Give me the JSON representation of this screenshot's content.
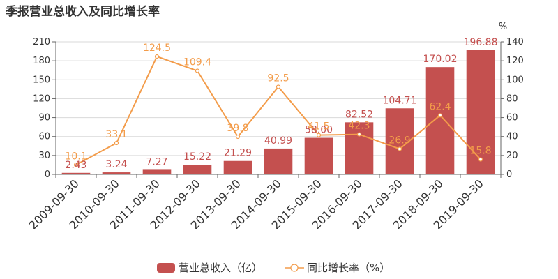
{
  "title": "季报营业总收入及同比增长率",
  "colors": {
    "bar": "#c4504f",
    "line": "#f39c4a",
    "bar_label": "#c4504f",
    "line_label": "#f39c4a"
  },
  "chart_data": {
    "type": "bar+line",
    "categories": [
      "2009-09-30",
      "2010-09-30",
      "2011-09-30",
      "2012-09-30",
      "2013-09-30",
      "2014-09-30",
      "2015-09-30",
      "2016-09-30",
      "2017-09-30",
      "2018-09-30",
      "2019-09-30"
    ],
    "series": [
      {
        "name": "营业总收入（亿）",
        "type": "bar",
        "axis": "left",
        "values": [
          2.43,
          3.24,
          7.27,
          15.22,
          21.29,
          40.99,
          58.0,
          82.52,
          104.71,
          170.02,
          196.88
        ],
        "labels": [
          "2.43",
          "3.24",
          "7.27",
          "15.22",
          "21.29",
          "40.99",
          "58.00",
          "82.52",
          "104.71",
          "170.02",
          "196.88"
        ]
      },
      {
        "name": "同比增长率（%）",
        "type": "line",
        "axis": "right",
        "values": [
          10.1,
          33.1,
          124.5,
          109.4,
          39.8,
          92.5,
          41.5,
          42.3,
          26.9,
          62.4,
          15.8
        ],
        "labels": [
          "10.1",
          "33.1",
          "124.5",
          "109.4",
          "39.8",
          "92.5",
          "41.5",
          "42.3",
          "26.9",
          "62.4",
          "15.8"
        ]
      }
    ],
    "y_left": {
      "min": 0,
      "max": 210,
      "ticks": [
        "0",
        "30",
        "60",
        "90",
        "120",
        "150",
        "180",
        "210"
      ]
    },
    "y_right": {
      "min": 0,
      "max": 140,
      "ticks": [
        "0",
        "20",
        "40",
        "60",
        "80",
        "100",
        "120",
        "140"
      ],
      "unit": "%"
    },
    "legend_position": "bottom-center",
    "grid": true
  }
}
